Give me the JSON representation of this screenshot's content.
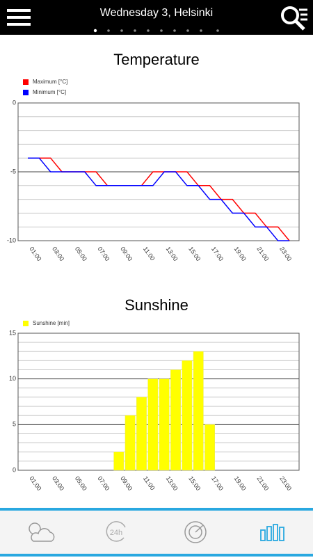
{
  "header": {
    "title": "Wednesday 3, Helsinki"
  },
  "chart_data": [
    {
      "type": "line",
      "title": "Temperature",
      "categories": [
        "01:00",
        null,
        "03:00",
        null,
        "05:00",
        null,
        "07:00",
        null,
        "09:00",
        null,
        "11:00",
        null,
        "13:00",
        null,
        "15:00",
        null,
        "17:00",
        null,
        "19:00",
        null,
        "21:00",
        null,
        "23:00",
        null
      ],
      "series": [
        {
          "name": "Maximum [°C]",
          "color": "#ff0000",
          "values": [
            -4,
            -4,
            -4,
            -5,
            -5,
            -5,
            -5,
            -6,
            -6,
            -6,
            -6,
            -5,
            -5,
            -5,
            -5,
            -6,
            -6,
            -7,
            -7,
            -8,
            -8,
            -9,
            -9,
            -10
          ]
        },
        {
          "name": "Minimum [°C]",
          "color": "#0000ff",
          "values": [
            -4,
            -4,
            -5,
            -5,
            -5,
            -5,
            -6,
            -6,
            -6,
            -6,
            -6,
            -6,
            -5,
            -5,
            -6,
            -6,
            -7,
            -7,
            -8,
            -8,
            -9,
            -9,
            -10,
            -10
          ]
        }
      ],
      "ylim": [
        -10,
        0
      ],
      "yticks": [
        0,
        -5,
        -10
      ],
      "yminorticks": [
        -1,
        -2,
        -3,
        -4,
        -6,
        -7,
        -8,
        -9
      ],
      "grid": true,
      "legend": "top-left"
    },
    {
      "type": "bar",
      "title": "Sunshine",
      "categories": [
        "01:00",
        null,
        "03:00",
        null,
        "05:00",
        null,
        "07:00",
        null,
        "09:00",
        null,
        "11:00",
        null,
        "13:00",
        null,
        "15:00",
        null,
        "17:00",
        null,
        "19:00",
        null,
        "21:00",
        null,
        "23:00",
        null
      ],
      "series": [
        {
          "name": "Sunshine [min]",
          "color": "#ffff00",
          "values": [
            0,
            0,
            0,
            0,
            0,
            0,
            0,
            0,
            2,
            6,
            8,
            10,
            10,
            11,
            12,
            13,
            5,
            0,
            0,
            0,
            0,
            0,
            0,
            0
          ]
        }
      ],
      "ylim": [
        0,
        15
      ],
      "yticks": [
        0,
        5,
        10,
        15
      ],
      "yminorticks": [
        1,
        2,
        3,
        4,
        6,
        7,
        8,
        9,
        11,
        12,
        13,
        14
      ],
      "grid": true,
      "legend": "top-left"
    }
  ]
}
